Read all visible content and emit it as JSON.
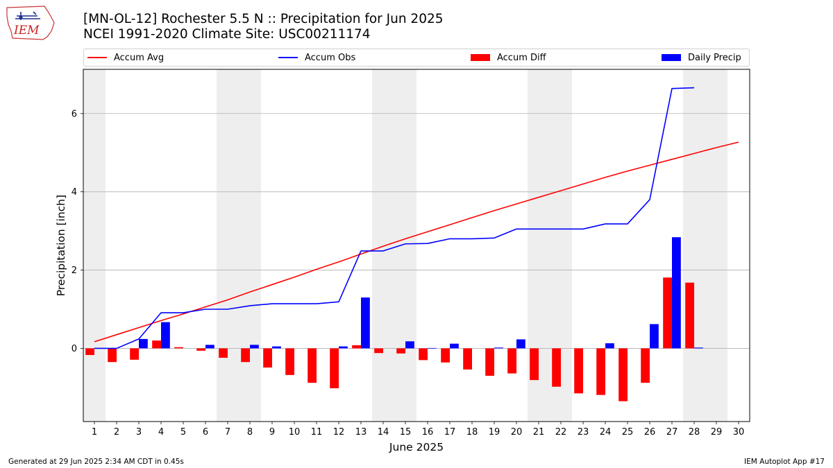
{
  "header": {
    "logo_text": "IEM",
    "title_line1": "[MN-OL-12] Rochester 5.5 N :: Precipitation for Jun 2025",
    "title_line2": "NCEI 1991-2020 Climate Site: USC00211174"
  },
  "legend": {
    "accum_avg": "Accum Avg",
    "accum_obs": "Accum Obs",
    "accum_diff": "Accum Diff",
    "daily_precip": "Daily Precip",
    "placement": "top, above plot"
  },
  "footer": {
    "generated": "Generated at 29 Jun 2025 2:34 AM CDT in 0.45s",
    "app": "IEM Autoplot App #17"
  },
  "colors": {
    "accum_avg": "#ff0000",
    "accum_obs": "#0000ff",
    "accum_diff": "#ff0000",
    "daily_precip": "#0000ff",
    "weekend_shade": "#eeeeee",
    "grid": "#b0b0b0"
  },
  "chart_data": {
    "type": "bar",
    "xlabel": "June 2025",
    "ylabel": "Precipitation [inch]",
    "xlim": [
      0.5,
      30.5
    ],
    "ylim": [
      -1.87,
      7.13
    ],
    "yticks": [
      0,
      2,
      4,
      6
    ],
    "categories": [
      "1",
      "2",
      "3",
      "4",
      "5",
      "6",
      "7",
      "8",
      "9",
      "10",
      "11",
      "12",
      "13",
      "14",
      "15",
      "16",
      "17",
      "18",
      "19",
      "20",
      "21",
      "22",
      "23",
      "24",
      "25",
      "26",
      "27",
      "28",
      "29",
      "30"
    ],
    "grid": "horizontal",
    "weekend_shaded_days": [
      1,
      7,
      8,
      14,
      15,
      21,
      22,
      28,
      29
    ],
    "series": [
      {
        "name": "Accum Avg",
        "kind": "line",
        "x": [
          1,
          2,
          3,
          4,
          5,
          6,
          7,
          8,
          9,
          10,
          11,
          12,
          13,
          14,
          15,
          16,
          17,
          18,
          19,
          20,
          21,
          22,
          23,
          24,
          25,
          26,
          27,
          28,
          29,
          30
        ],
        "values": [
          0.17,
          0.35,
          0.53,
          0.71,
          0.88,
          1.06,
          1.24,
          1.44,
          1.63,
          1.82,
          2.02,
          2.21,
          2.41,
          2.61,
          2.8,
          2.98,
          3.16,
          3.34,
          3.52,
          3.69,
          3.86,
          4.03,
          4.2,
          4.37,
          4.53,
          4.68,
          4.83,
          4.98,
          5.13,
          5.27
        ]
      },
      {
        "name": "Accum Obs",
        "kind": "line",
        "x": [
          1,
          2,
          3,
          4,
          5,
          6,
          7,
          8,
          9,
          10,
          11,
          12,
          13,
          14,
          15,
          16,
          17,
          18,
          19,
          20,
          21,
          22,
          23,
          24,
          25,
          26,
          27,
          28
        ],
        "values": [
          0.0,
          0.0,
          0.24,
          0.91,
          0.91,
          1.0,
          1.0,
          1.09,
          1.14,
          1.14,
          1.14,
          1.19,
          2.49,
          2.49,
          2.67,
          2.68,
          2.8,
          2.8,
          2.82,
          3.05,
          3.05,
          3.05,
          3.05,
          3.18,
          3.18,
          3.8,
          6.64,
          6.66
        ]
      },
      {
        "name": "Accum Diff",
        "kind": "bar",
        "x": [
          1,
          2,
          3,
          4,
          5,
          6,
          7,
          8,
          9,
          10,
          11,
          12,
          13,
          14,
          15,
          16,
          17,
          18,
          19,
          20,
          21,
          22,
          23,
          24,
          25,
          26,
          27,
          28
        ],
        "values": [
          -0.17,
          -0.35,
          -0.29,
          0.2,
          0.03,
          -0.06,
          -0.24,
          -0.35,
          -0.49,
          -0.68,
          -0.88,
          -1.02,
          0.08,
          -0.12,
          -0.13,
          -0.3,
          -0.36,
          -0.54,
          -0.7,
          -0.64,
          -0.81,
          -0.98,
          -1.15,
          -1.19,
          -1.35,
          -0.88,
          1.81,
          1.68
        ]
      },
      {
        "name": "Daily Precip",
        "kind": "bar",
        "x": [
          1,
          2,
          3,
          4,
          5,
          6,
          7,
          8,
          9,
          10,
          11,
          12,
          13,
          14,
          15,
          16,
          17,
          18,
          19,
          20,
          21,
          22,
          23,
          24,
          25,
          26,
          27,
          28
        ],
        "values": [
          0.0,
          0.0,
          0.24,
          0.67,
          0.0,
          0.09,
          0.0,
          0.09,
          0.05,
          0.0,
          0.0,
          0.05,
          1.3,
          0.0,
          0.18,
          0.01,
          0.12,
          0.0,
          0.02,
          0.23,
          0.0,
          0.0,
          0.0,
          0.13,
          0.0,
          0.62,
          2.84,
          0.02
        ]
      }
    ]
  }
}
